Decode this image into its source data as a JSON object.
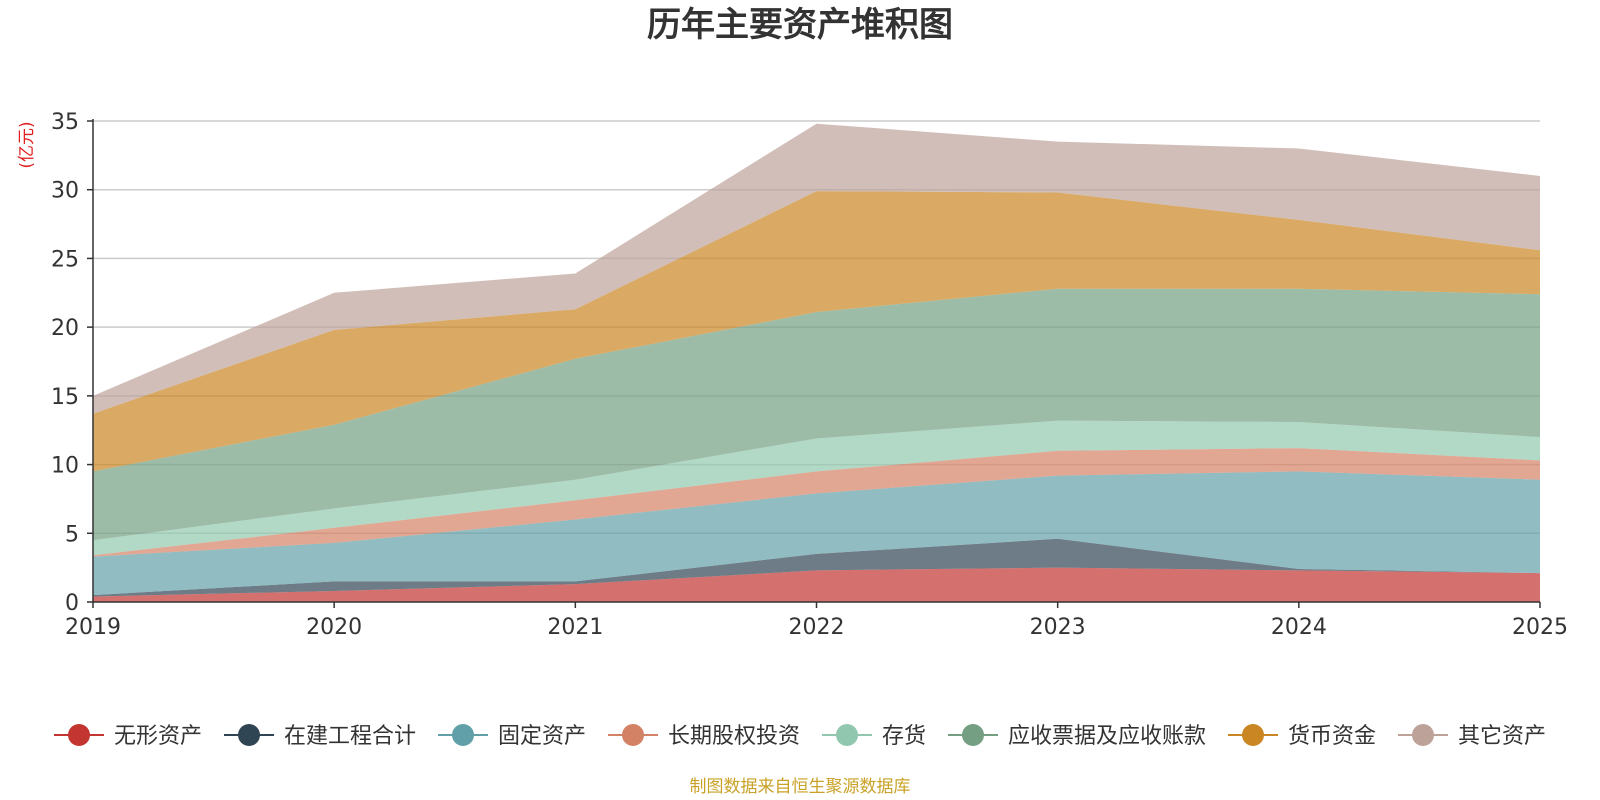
{
  "chart_data": {
    "type": "area",
    "title": "历年主要资产堆积图",
    "ylabel": "(亿元)",
    "xlabel": "",
    "x": [
      "2019",
      "2020",
      "2021",
      "2022",
      "2023",
      "2024",
      "2025"
    ],
    "ylim": [
      0,
      35
    ],
    "yticks": [
      0,
      5,
      10,
      15,
      20,
      25,
      30,
      35
    ],
    "grid": true,
    "legend_position": "bottom",
    "source": "制图数据来自恒生聚源数据库",
    "series": [
      {
        "name": "无形资产",
        "color": "#c23531",
        "values": [
          0.4,
          0.8,
          1.3,
          2.3,
          2.5,
          2.3,
          2.1
        ]
      },
      {
        "name": "在建工程合计",
        "color": "#2f4554",
        "values": [
          0.1,
          0.7,
          0.2,
          1.2,
          2.1,
          0.1,
          0.0
        ]
      },
      {
        "name": "固定资产",
        "color": "#61a0a8",
        "values": [
          2.8,
          2.8,
          4.5,
          4.4,
          4.6,
          7.1,
          6.8
        ]
      },
      {
        "name": "长期股权投资",
        "color": "#d48265",
        "values": [
          0.1,
          1.1,
          1.4,
          1.6,
          1.8,
          1.7,
          1.4
        ]
      },
      {
        "name": "存货",
        "color": "#91c7ae",
        "values": [
          1.1,
          1.4,
          1.5,
          2.4,
          2.2,
          1.9,
          1.7
        ]
      },
      {
        "name": "应收票据及应收账款",
        "color": "#749f83",
        "values": [
          5.0,
          6.1,
          8.8,
          9.2,
          9.6,
          9.7,
          10.4
        ]
      },
      {
        "name": "货币资金",
        "color": "#ca8622",
        "values": [
          4.2,
          6.9,
          3.6,
          8.8,
          7.0,
          5.0,
          3.2
        ]
      },
      {
        "name": "其它资产",
        "color": "#bda29a",
        "values": [
          1.3,
          2.7,
          2.6,
          4.9,
          3.7,
          5.2,
          5.4
        ]
      }
    ]
  }
}
